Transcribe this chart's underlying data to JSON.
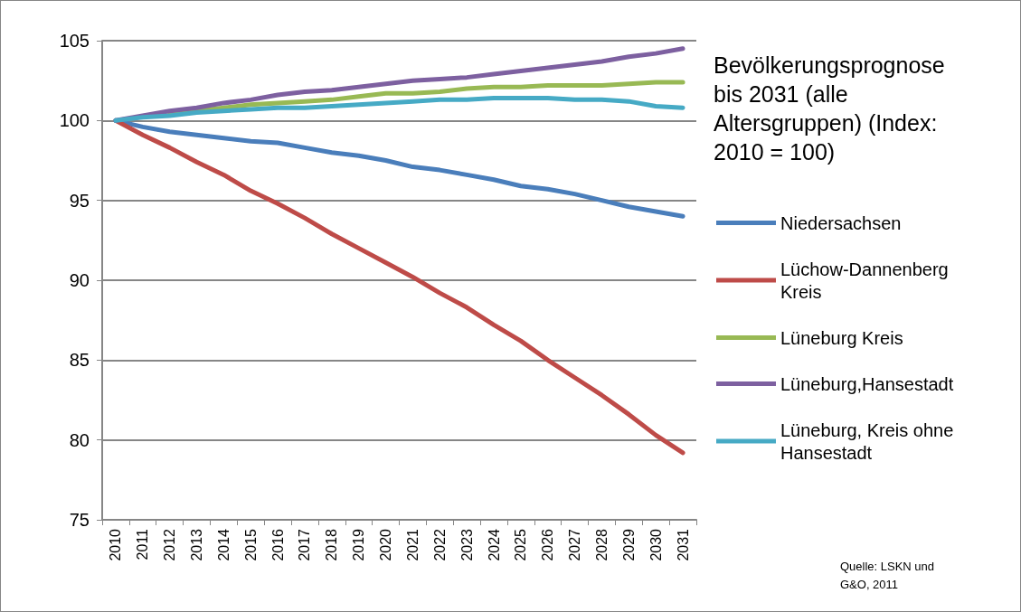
{
  "chart_data": {
    "type": "line",
    "title": "Bevölkerungsprognose bis 2031 (alle Altersgruppen) (Index: 2010 = 100)",
    "categories": [
      "2010",
      "2011",
      "2012",
      "2013",
      "2014",
      "2015",
      "2016",
      "2017",
      "2018",
      "2019",
      "2020",
      "2021",
      "2022",
      "2023",
      "2024",
      "2025",
      "2026",
      "2027",
      "2028",
      "2029",
      "2030",
      "2031"
    ],
    "series": [
      {
        "name": "Niedersachsen",
        "color": "#4a7ebb",
        "values": [
          100,
          99.6,
          99.3,
          99.1,
          98.9,
          98.7,
          98.6,
          98.3,
          98.0,
          97.8,
          97.5,
          97.1,
          96.9,
          96.6,
          96.3,
          95.9,
          95.7,
          95.4,
          95.0,
          94.6,
          94.3,
          94.0
        ]
      },
      {
        "name": "Lüchow-Dannenberg Kreis",
        "color": "#be4b48",
        "values": [
          100,
          99.1,
          98.3,
          97.4,
          96.6,
          95.6,
          94.8,
          93.9,
          92.9,
          92.0,
          91.1,
          90.2,
          89.2,
          88.3,
          87.2,
          86.2,
          85.0,
          83.9,
          82.8,
          81.6,
          80.3,
          79.2
        ]
      },
      {
        "name": "Lüneburg Kreis",
        "color": "#98b954",
        "values": [
          null,
          null,
          100.4,
          100.6,
          100.8,
          101.0,
          101.1,
          101.2,
          101.3,
          101.5,
          101.7,
          101.7,
          101.8,
          102.0,
          102.1,
          102.1,
          102.2,
          102.2,
          102.2,
          102.3,
          102.4,
          102.4
        ]
      },
      {
        "name": "Lüneburg,Hansestadt",
        "color": "#7d60a0",
        "values": [
          100,
          100.3,
          100.6,
          100.8,
          101.1,
          101.3,
          101.6,
          101.8,
          101.9,
          102.1,
          102.3,
          102.5,
          102.6,
          102.7,
          102.9,
          103.1,
          103.3,
          103.5,
          103.7,
          104.0,
          104.2,
          104.5
        ]
      },
      {
        "name": "Lüneburg, Kreis ohne Hansestadt",
        "color": "#46aac5",
        "values": [
          100,
          100.2,
          100.3,
          100.5,
          100.6,
          100.7,
          100.8,
          100.8,
          100.9,
          101.0,
          101.1,
          101.2,
          101.3,
          101.3,
          101.4,
          101.4,
          101.4,
          101.3,
          101.3,
          101.2,
          100.9,
          100.8
        ]
      }
    ],
    "ylim": [
      75,
      105
    ],
    "yticks": [
      75,
      80,
      85,
      90,
      95,
      100,
      105
    ],
    "grid": "y",
    "legend": "right",
    "marker": "none",
    "line_style": "solid",
    "annotations": [
      "Quelle: LSKN und G&O, 2011"
    ]
  }
}
